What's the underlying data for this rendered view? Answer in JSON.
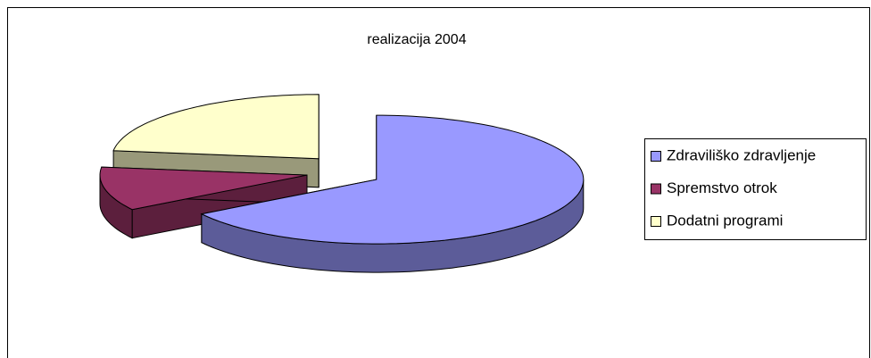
{
  "chart_data": {
    "type": "pie3d",
    "title": "realizacija 2004",
    "categories": [
      "Zdraviliško zdravljenje",
      "Spremstvo otrok",
      "Dodatni programi"
    ],
    "values": [
      66,
      11,
      23
    ],
    "colors": [
      "#9999ff",
      "#993366",
      "#ffffcc"
    ],
    "legend": "right"
  }
}
